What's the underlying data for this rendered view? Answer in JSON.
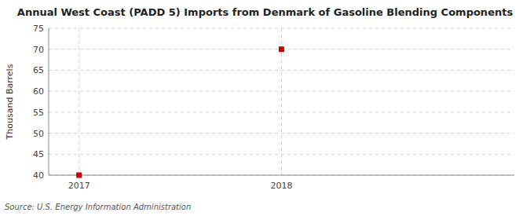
{
  "chart_data": {
    "type": "scatter",
    "title": "Annual West Coast (PADD 5) Imports from Denmark of Gasoline Blending Components",
    "y_label": "Thousand Barrels",
    "source": "Source: U.S. Energy Information Administration",
    "x": [
      2017,
      2018
    ],
    "values": [
      40,
      70
    ],
    "xlim": [
      2016.85,
      2019.15
    ],
    "xticks": [
      2017,
      2018
    ],
    "ylim": [
      40,
      75
    ],
    "yticks": [
      40,
      45,
      50,
      55,
      60,
      65,
      70,
      75
    ],
    "color": "#cc0000",
    "marker": "square",
    "grid": true
  }
}
